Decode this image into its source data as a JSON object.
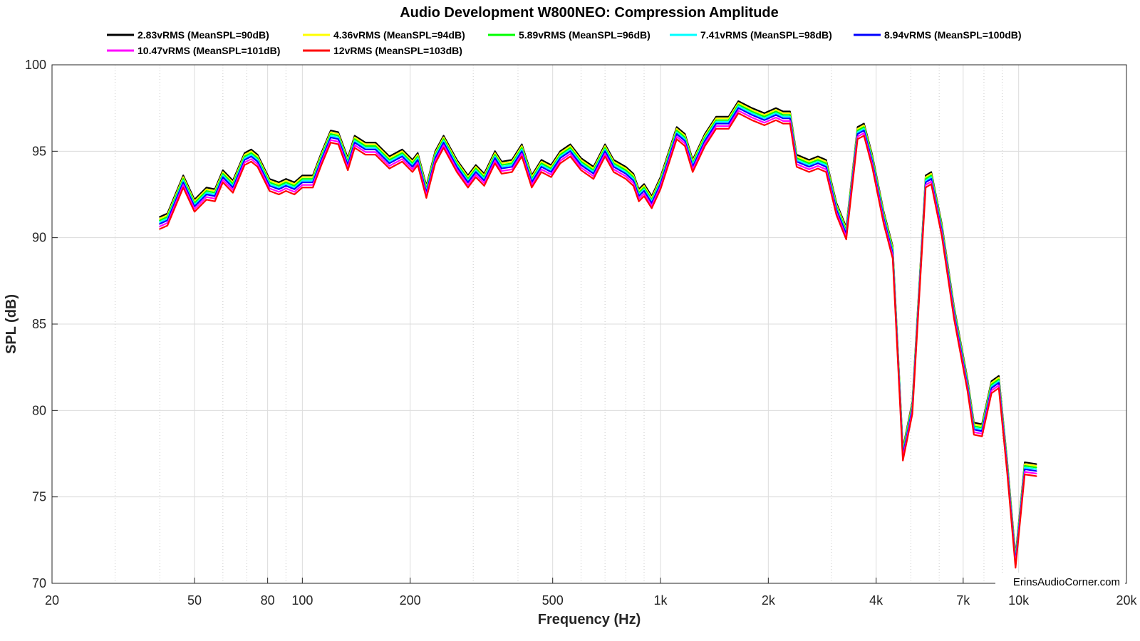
{
  "chart_data": {
    "type": "line",
    "title": "Audio Development W800NEO: Compression Amplitude",
    "xlabel": "Frequency (Hz)",
    "ylabel": "SPL (dB)",
    "xscale": "log",
    "xlim": [
      20,
      20000
    ],
    "ylim": [
      70,
      100
    ],
    "grid": true,
    "legend_position": "top",
    "watermark": "ErinsAudioCorner.com",
    "x_ticks": [
      {
        "value": 20,
        "label": "20"
      },
      {
        "value": 50,
        "label": "50"
      },
      {
        "value": 80,
        "label": "80"
      },
      {
        "value": 100,
        "label": "100"
      },
      {
        "value": 200,
        "label": "200"
      },
      {
        "value": 500,
        "label": "500"
      },
      {
        "value": 1000,
        "label": "1k"
      },
      {
        "value": 2000,
        "label": "2k"
      },
      {
        "value": 4000,
        "label": "4k"
      },
      {
        "value": 7000,
        "label": "7k"
      },
      {
        "value": 10000,
        "label": "10k"
      },
      {
        "value": 20000,
        "label": "20k"
      }
    ],
    "y_ticks": [
      {
        "value": 70,
        "label": "70"
      },
      {
        "value": 75,
        "label": "75"
      },
      {
        "value": 80,
        "label": "80"
      },
      {
        "value": 85,
        "label": "85"
      },
      {
        "value": 90,
        "label": "90"
      },
      {
        "value": 95,
        "label": "95"
      },
      {
        "value": 100,
        "label": "100"
      }
    ],
    "base_curve": [
      [
        40,
        91.2
      ],
      [
        42,
        91.4
      ],
      [
        46.5,
        93.6
      ],
      [
        50,
        92.2
      ],
      [
        54,
        92.9
      ],
      [
        57,
        92.8
      ],
      [
        60,
        93.9
      ],
      [
        64,
        93.3
      ],
      [
        69,
        94.9
      ],
      [
        72,
        95.1
      ],
      [
        75,
        94.8
      ],
      [
        81,
        93.4
      ],
      [
        86,
        93.2
      ],
      [
        90,
        93.4
      ],
      [
        95,
        93.2
      ],
      [
        100,
        93.6
      ],
      [
        107,
        93.6
      ],
      [
        113,
        94.9
      ],
      [
        120,
        96.2
      ],
      [
        126,
        96.1
      ],
      [
        134,
        94.6
      ],
      [
        140,
        95.9
      ],
      [
        150,
        95.5
      ],
      [
        160,
        95.5
      ],
      [
        175,
        94.7
      ],
      [
        190,
        95.1
      ],
      [
        203,
        94.5
      ],
      [
        210,
        94.9
      ],
      [
        222,
        93.0
      ],
      [
        235,
        95.0
      ],
      [
        248,
        95.9
      ],
      [
        270,
        94.5
      ],
      [
        290,
        93.6
      ],
      [
        305,
        94.2
      ],
      [
        322,
        93.7
      ],
      [
        345,
        95.0
      ],
      [
        360,
        94.4
      ],
      [
        385,
        94.5
      ],
      [
        410,
        95.4
      ],
      [
        437,
        93.6
      ],
      [
        465,
        94.5
      ],
      [
        495,
        94.2
      ],
      [
        525,
        95.0
      ],
      [
        560,
        95.4
      ],
      [
        600,
        94.6
      ],
      [
        650,
        94.1
      ],
      [
        700,
        95.4
      ],
      [
        740,
        94.5
      ],
      [
        800,
        94.1
      ],
      [
        840,
        93.7
      ],
      [
        870,
        92.8
      ],
      [
        900,
        93.1
      ],
      [
        945,
        92.4
      ],
      [
        1000,
        93.5
      ],
      [
        1110,
        96.4
      ],
      [
        1170,
        96.0
      ],
      [
        1230,
        94.5
      ],
      [
        1330,
        96.0
      ],
      [
        1430,
        97.0
      ],
      [
        1550,
        97.0
      ],
      [
        1650,
        97.9
      ],
      [
        1800,
        97.5
      ],
      [
        1950,
        97.2
      ],
      [
        2100,
        97.5
      ],
      [
        2200,
        97.3
      ],
      [
        2300,
        97.3
      ],
      [
        2400,
        94.8
      ],
      [
        2600,
        94.5
      ],
      [
        2750,
        94.7
      ],
      [
        2900,
        94.5
      ],
      [
        3100,
        92.0
      ],
      [
        3300,
        90.6
      ],
      [
        3550,
        96.4
      ],
      [
        3700,
        96.6
      ],
      [
        3900,
        94.8
      ],
      [
        4200,
        91.5
      ],
      [
        4450,
        89.5
      ],
      [
        4750,
        77.8
      ],
      [
        5050,
        80.5
      ],
      [
        5500,
        93.6
      ],
      [
        5700,
        93.8
      ],
      [
        6100,
        90.8
      ],
      [
        6600,
        86.0
      ],
      [
        7200,
        81.8
      ],
      [
        7500,
        79.3
      ],
      [
        7900,
        79.2
      ],
      [
        8400,
        81.7
      ],
      [
        8800,
        82.0
      ],
      [
        9300,
        77.0
      ],
      [
        9800,
        71.6
      ],
      [
        10400,
        77.0
      ],
      [
        11200,
        76.9
      ]
    ],
    "series": [
      {
        "name": "2.83vRMS (MeanSPL=90dB)",
        "color": "#000000",
        "offset": 0.0
      },
      {
        "name": "4.36vRMS (MeanSPL=94dB)",
        "color": "#ffff00",
        "offset": -0.1
      },
      {
        "name": "5.89vRMS (MeanSPL=96dB)",
        "color": "#00ff00",
        "offset": -0.2
      },
      {
        "name": "7.41vRMS (MeanSPL=98dB)",
        "color": "#00ffff",
        "offset": -0.3
      },
      {
        "name": "8.94vRMS (MeanSPL=100dB)",
        "color": "#0000ff",
        "offset": -0.4
      },
      {
        "name": "10.47vRMS (MeanSPL=101dB)",
        "color": "#ff00ff",
        "offset": -0.55
      },
      {
        "name": "12vRMS (MeanSPL=103dB)",
        "color": "#ff0000",
        "offset": -0.7
      }
    ]
  }
}
